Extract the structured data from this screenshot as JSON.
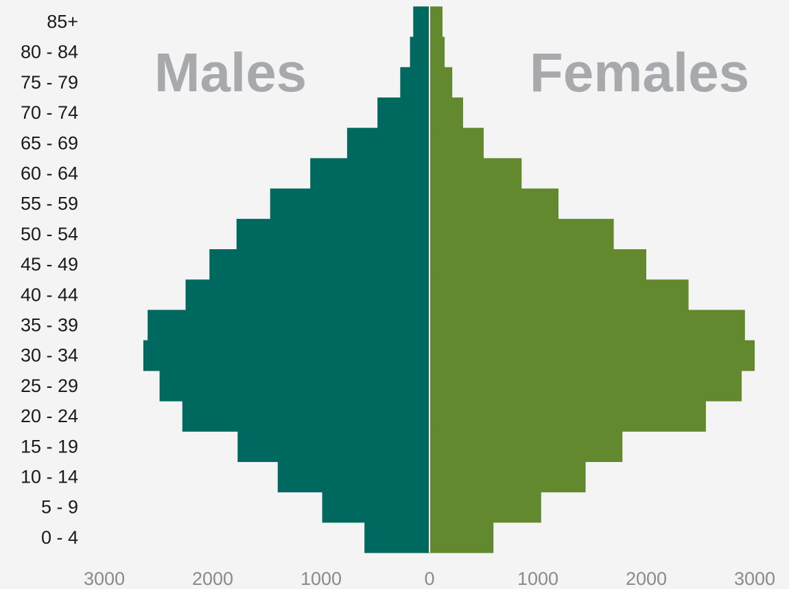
{
  "chart_data": {
    "type": "bar",
    "orientation": "horizontal",
    "subtype": "population-pyramid",
    "categories": [
      "0 - 4",
      "5 - 9",
      "10 - 14",
      "15 - 19",
      "20 - 24",
      "25 - 29",
      "30 - 34",
      "35 - 39",
      "40 - 44",
      "45 - 49",
      "50 - 54",
      "55 - 59",
      "60 - 64",
      "65 - 69",
      "70 - 74",
      "75 - 79",
      "80 - 84",
      "85+"
    ],
    "series": [
      {
        "name": "Males",
        "side": "left",
        "color": "#00695f",
        "values": [
          600,
          990,
          1400,
          1770,
          2280,
          2490,
          2640,
          2600,
          2250,
          2030,
          1780,
          1470,
          1100,
          760,
          480,
          270,
          180,
          150
        ]
      },
      {
        "name": "Females",
        "side": "right",
        "color": "#63892f",
        "values": [
          590,
          1030,
          1440,
          1780,
          2550,
          2880,
          3000,
          2910,
          2390,
          2000,
          1700,
          1190,
          850,
          500,
          310,
          210,
          140,
          120
        ]
      }
    ],
    "x_ticks": [
      "3000",
      "2000",
      "1000",
      "0",
      "1000",
      "2000",
      "3000"
    ],
    "xlim": [
      -3000,
      3000
    ],
    "title": "",
    "xlabel": "",
    "ylabel": "",
    "grid": false,
    "legend": "none",
    "annotations": [
      {
        "text": "Males",
        "position": "top-left"
      },
      {
        "text": "Females",
        "position": "top-right"
      }
    ]
  }
}
